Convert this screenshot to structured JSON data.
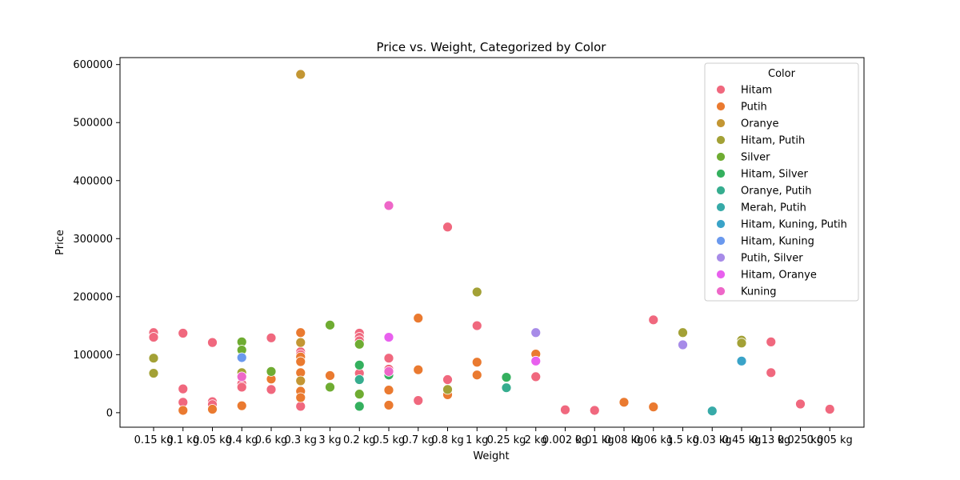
{
  "chart_data": {
    "type": "scatter",
    "title": "Price vs. Weight, Categorized by Color",
    "xlabel": "Weight",
    "ylabel": "Price",
    "ylim": [
      -25000,
      612000
    ],
    "yticks": [
      0,
      100000,
      200000,
      300000,
      400000,
      500000,
      600000
    ],
    "categories": [
      "0.15 kg",
      "0.1 kg",
      "0.05 kg",
      "0.4 kg",
      "0.6 kg",
      "0.3 kg",
      "3 kg",
      "0.2 kg",
      "0.5 kg",
      "0.7 kg",
      "0.8 kg",
      "1 kg",
      "0.25 kg",
      "2 kg",
      "0.002 kg",
      "0.01 kg",
      "0.08 kg",
      "0.06 kg",
      "1.5 kg",
      "0.03 kg",
      "0.45 kg",
      "0.13 kg",
      "0.025 kg",
      "0.005 kg"
    ],
    "grid": false,
    "legend": {
      "title": "Color",
      "position": "top-right"
    },
    "series": [
      {
        "name": "Hitam",
        "color": "#f0687e",
        "points": [
          [
            "0.15 kg",
            138000
          ],
          [
            "0.15 kg",
            130000
          ],
          [
            "0.1 kg",
            137000
          ],
          [
            "0.1 kg",
            41000
          ],
          [
            "0.1 kg",
            18000
          ],
          [
            "0.05 kg",
            121000
          ],
          [
            "0.05 kg",
            19000
          ],
          [
            "0.05 kg",
            14000
          ],
          [
            "0.4 kg",
            50000
          ],
          [
            "0.4 kg",
            44000
          ],
          [
            "0.6 kg",
            129000
          ],
          [
            "0.6 kg",
            40000
          ],
          [
            "0.3 kg",
            105000
          ],
          [
            "0.3 kg",
            100000
          ],
          [
            "0.3 kg",
            11000
          ],
          [
            "0.2 kg",
            137000
          ],
          [
            "0.2 kg",
            130000
          ],
          [
            "0.2 kg",
            124000
          ],
          [
            "0.2 kg",
            68000
          ],
          [
            "0.5 kg",
            94000
          ],
          [
            "0.5 kg",
            75000
          ],
          [
            "0.7 kg",
            21000
          ],
          [
            "0.8 kg",
            320000
          ],
          [
            "0.8 kg",
            57000
          ],
          [
            "1 kg",
            150000
          ],
          [
            "2 kg",
            62000
          ],
          [
            "0.002 kg",
            5000
          ],
          [
            "0.01 kg",
            4000
          ],
          [
            "0.06 kg",
            160000
          ],
          [
            "0.13 kg",
            122000
          ],
          [
            "0.13 kg",
            69000
          ],
          [
            "0.025 kg",
            15000
          ],
          [
            "0.005 kg",
            6000
          ]
        ]
      },
      {
        "name": "Putih",
        "color": "#ea7a30",
        "points": [
          [
            "0.1 kg",
            4000
          ],
          [
            "0.05 kg",
            6000
          ],
          [
            "0.4 kg",
            12000
          ],
          [
            "0.6 kg",
            58000
          ],
          [
            "0.3 kg",
            138000
          ],
          [
            "0.3 kg",
            96000
          ],
          [
            "0.3 kg",
            88000
          ],
          [
            "0.3 kg",
            69000
          ],
          [
            "0.3 kg",
            37000
          ],
          [
            "0.3 kg",
            26000
          ],
          [
            "3 kg",
            64000
          ],
          [
            "0.5 kg",
            39000
          ],
          [
            "0.5 kg",
            13000
          ],
          [
            "0.7 kg",
            163000
          ],
          [
            "0.7 kg",
            74000
          ],
          [
            "0.8 kg",
            31000
          ],
          [
            "1 kg",
            87000
          ],
          [
            "1 kg",
            65000
          ],
          [
            "2 kg",
            101000
          ],
          [
            "0.08 kg",
            18000
          ],
          [
            "0.06 kg",
            10000
          ]
        ]
      },
      {
        "name": "Oranye",
        "color": "#c39633",
        "points": [
          [
            "0.3 kg",
            583000
          ],
          [
            "0.3 kg",
            121000
          ],
          [
            "0.3 kg",
            55000
          ]
        ]
      },
      {
        "name": "Hitam, Putih",
        "color": "#a3a136",
        "points": [
          [
            "0.15 kg",
            94000
          ],
          [
            "0.15 kg",
            68000
          ],
          [
            "0.4 kg",
            69000
          ],
          [
            "0.8 kg",
            40000
          ],
          [
            "1 kg",
            208000
          ],
          [
            "1.5 kg",
            138000
          ],
          [
            "0.45 kg",
            125000
          ],
          [
            "0.45 kg",
            120000
          ]
        ]
      },
      {
        "name": "Silver",
        "color": "#6fac32",
        "points": [
          [
            "0.4 kg",
            122000
          ],
          [
            "0.4 kg",
            108000
          ],
          [
            "0.6 kg",
            71000
          ],
          [
            "3 kg",
            151000
          ],
          [
            "3 kg",
            44000
          ],
          [
            "0.2 kg",
            118000
          ],
          [
            "0.2 kg",
            32000
          ]
        ]
      },
      {
        "name": "Hitam, Silver",
        "color": "#34b05e",
        "points": [
          [
            "0.2 kg",
            82000
          ],
          [
            "0.2 kg",
            11000
          ],
          [
            "0.5 kg",
            65000
          ],
          [
            "0.25 kg",
            61000
          ]
        ]
      },
      {
        "name": "Oranye, Putih",
        "color": "#36ad8f",
        "points": [
          [
            "0.2 kg",
            57000
          ],
          [
            "0.25 kg",
            43000
          ]
        ]
      },
      {
        "name": "Merah, Putih",
        "color": "#37aaa8",
        "points": [
          [
            "0.03 kg",
            3000
          ]
        ]
      },
      {
        "name": "Hitam, Kuning, Putih",
        "color": "#3aa3c8",
        "points": [
          [
            "0.45 kg",
            89000
          ]
        ]
      },
      {
        "name": "Hitam, Kuning",
        "color": "#6a99ee",
        "points": [
          [
            "0.4 kg",
            95000
          ]
        ]
      },
      {
        "name": "Putih, Silver",
        "color": "#a78be8",
        "points": [
          [
            "2 kg",
            138000
          ],
          [
            "1.5 kg",
            117000
          ]
        ]
      },
      {
        "name": "Hitam, Oranye",
        "color": "#e860ee",
        "points": [
          [
            "0.5 kg",
            130000
          ],
          [
            "2 kg",
            89000
          ]
        ]
      },
      {
        "name": "Kuning",
        "color": "#ee67c8",
        "points": [
          [
            "0.4 kg",
            62000
          ],
          [
            "0.5 kg",
            357000
          ],
          [
            "0.5 kg",
            71000
          ]
        ]
      }
    ]
  }
}
